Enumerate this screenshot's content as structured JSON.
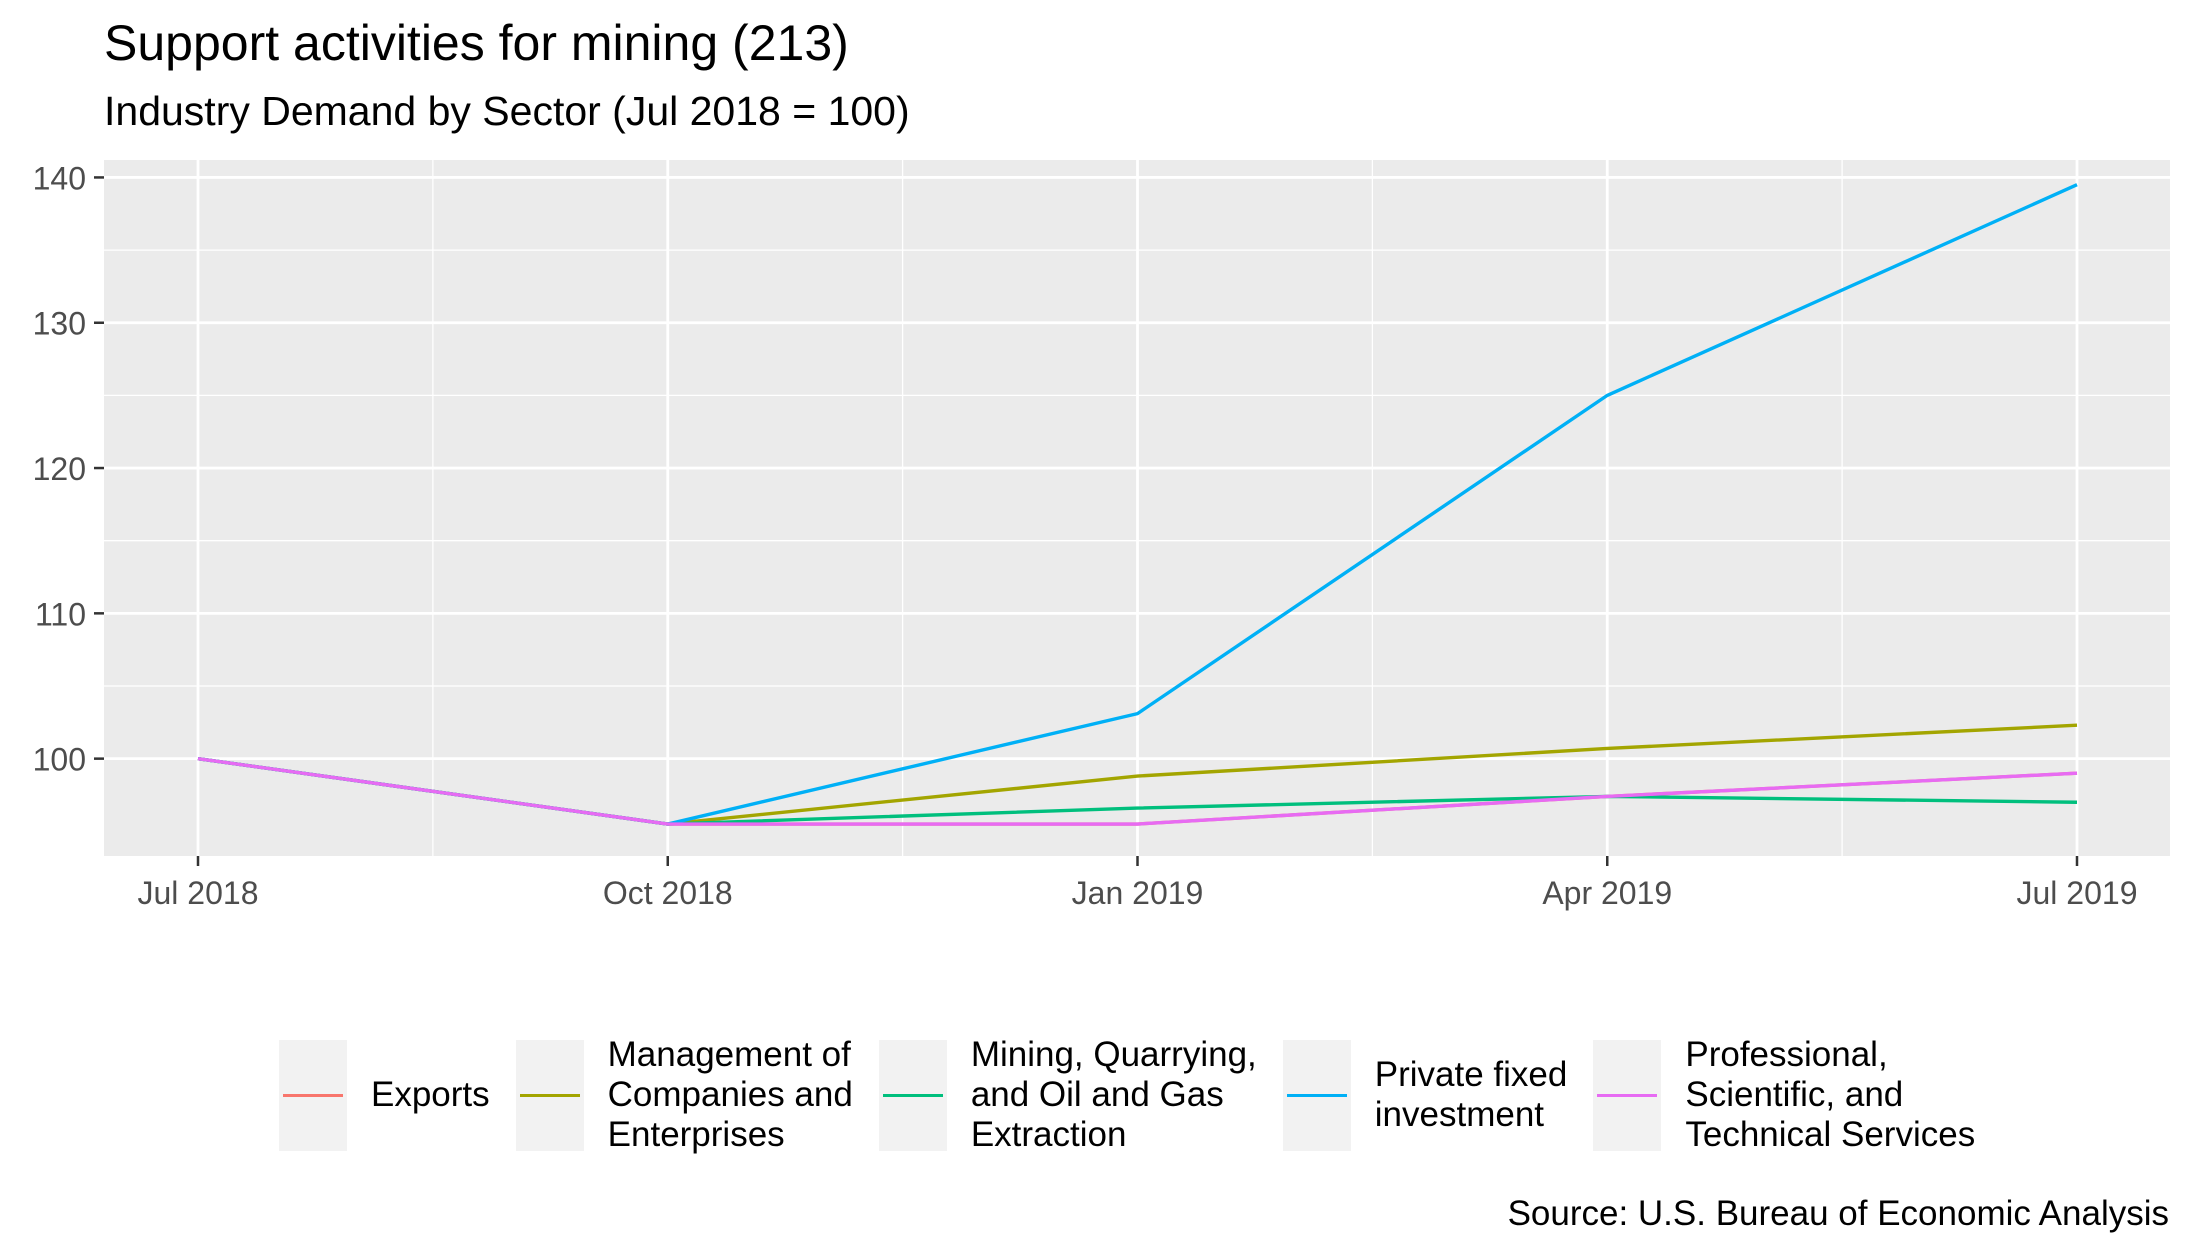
{
  "chart_data": {
    "type": "line",
    "title": "Support activities for mining (213)",
    "subtitle": "Industry Demand by Sector (Jul 2018 = 100)",
    "caption": "Source: U.S. Bureau of Economic Analysis",
    "x": [
      "Jul 2018",
      "Oct 2018",
      "Jan 2019",
      "Apr 2019",
      "Jul 2019"
    ],
    "ylim": [
      93.3,
      141.2
    ],
    "yticks": [
      100,
      110,
      120,
      130,
      140
    ],
    "grid": true,
    "legend_position": "bottom",
    "series": [
      {
        "name": "Exports",
        "color": "#F8766D",
        "values": [
          100,
          95.5,
          95.5,
          97.4,
          99.0
        ]
      },
      {
        "name": "Management of\nCompanies and\nEnterprises",
        "color": "#A3A500",
        "values": [
          100,
          95.5,
          98.8,
          100.7,
          102.3
        ]
      },
      {
        "name": "Mining, Quarrying,\nand Oil and Gas\nExtraction",
        "color": "#00BF7D",
        "values": [
          100,
          95.5,
          96.6,
          97.4,
          97.0
        ]
      },
      {
        "name": "Private fixed\ninvestment",
        "color": "#00B0F6",
        "values": [
          100,
          95.5,
          103.1,
          125.0,
          139.5
        ]
      },
      {
        "name": "Professional,\nScientific, and\nTechnical Services",
        "color": "#E76BF3",
        "values": [
          100,
          95.5,
          95.5,
          97.4,
          99.0
        ]
      }
    ]
  }
}
